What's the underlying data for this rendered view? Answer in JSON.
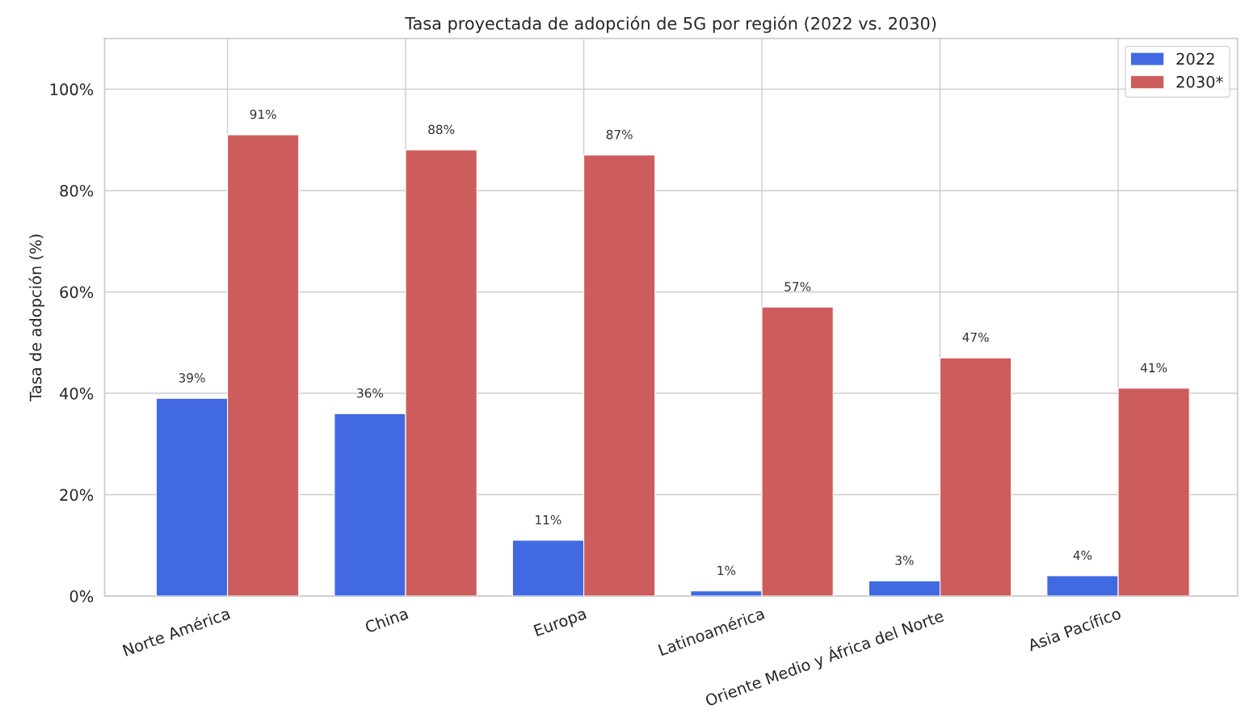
{
  "chart_data": {
    "type": "bar",
    "title": "Tasa proyectada de adopción de 5G por región (2022 vs. 2030)",
    "ylabel": "Tasa de adopción (%)",
    "categories": [
      "Norte América",
      "China",
      "Europa",
      "Latinoamérica",
      "Oriente Medio y África del Norte",
      "Asia Pacífico"
    ],
    "series": [
      {
        "name": "2022",
        "color": "#4169e1",
        "values": [
          39,
          36,
          11,
          1,
          3,
          4
        ],
        "value_labels": [
          "39%",
          "36%",
          "11%",
          "1%",
          "3%",
          "4%"
        ]
      },
      {
        "name": "2030*",
        "color": "#cd5c5c",
        "values": [
          91,
          88,
          87,
          57,
          47,
          41
        ],
        "value_labels": [
          "91%",
          "88%",
          "87%",
          "57%",
          "47%",
          "41%"
        ]
      }
    ],
    "ylim": [
      0,
      110
    ],
    "yticks": [
      {
        "value": 0,
        "label": "0%"
      },
      {
        "value": 20,
        "label": "20%"
      },
      {
        "value": 40,
        "label": "40%"
      },
      {
        "value": 60,
        "label": "60%"
      },
      {
        "value": 80,
        "label": "80%"
      },
      {
        "value": 100,
        "label": "100%"
      }
    ],
    "grid": true,
    "legend": "top right"
  }
}
